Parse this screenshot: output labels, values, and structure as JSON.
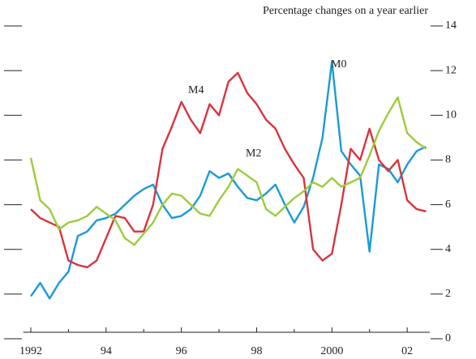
{
  "chart_data": {
    "type": "line",
    "subtitle": "Percentage changes on a year earlier",
    "x": [
      1992,
      1992.25,
      1992.5,
      1992.75,
      1993,
      1993.25,
      1993.5,
      1993.75,
      1994,
      1994.25,
      1994.5,
      1994.75,
      1995,
      1995.25,
      1995.5,
      1995.75,
      1996,
      1996.25,
      1996.5,
      1996.75,
      1997,
      1997.25,
      1997.5,
      1997.75,
      1998,
      1998.25,
      1998.5,
      1998.75,
      1999,
      1999.25,
      1999.5,
      1999.75,
      2000,
      2000.25,
      2000.5,
      2000.75,
      2001,
      2001.25,
      2001.5,
      2001.75,
      2002,
      2002.25,
      2002.5
    ],
    "series": [
      {
        "name": "M0",
        "color": "#1a9ad6",
        "values": [
          1.9,
          2.5,
          1.8,
          2.5,
          3.0,
          4.6,
          4.8,
          5.3,
          5.4,
          5.6,
          6.0,
          6.4,
          6.7,
          6.9,
          6.0,
          5.4,
          5.5,
          5.8,
          6.4,
          7.5,
          7.2,
          7.4,
          6.8,
          6.3,
          6.2,
          6.5,
          6.9,
          6.0,
          5.2,
          5.9,
          7.2,
          9.0,
          12.4,
          8.4,
          7.8,
          7.3,
          3.9,
          7.8,
          7.6,
          7.0,
          7.8,
          8.4,
          8.6
        ]
      },
      {
        "name": "M4",
        "color": "#d8343f",
        "values": [
          5.8,
          5.4,
          5.2,
          5.0,
          3.5,
          3.3,
          3.2,
          3.5,
          4.5,
          5.5,
          5.4,
          4.8,
          4.8,
          6.0,
          8.5,
          9.5,
          10.6,
          9.8,
          9.2,
          10.5,
          10.0,
          11.5,
          11.9,
          11.0,
          10.5,
          9.8,
          9.4,
          8.5,
          7.8,
          7.2,
          4.0,
          3.5,
          3.8,
          6.0,
          8.5,
          8.0,
          9.4,
          8.0,
          7.5,
          8.0,
          6.2,
          5.8,
          5.7
        ]
      },
      {
        "name": "M2",
        "color": "#9ccc3c",
        "values": [
          8.1,
          6.2,
          5.8,
          4.9,
          5.2,
          5.3,
          5.5,
          5.9,
          5.6,
          5.3,
          4.5,
          4.2,
          4.7,
          5.2,
          6.0,
          6.5,
          6.4,
          6.0,
          5.6,
          5.5,
          6.2,
          6.8,
          7.6,
          7.3,
          7.0,
          5.8,
          5.5,
          5.9,
          6.3,
          6.6,
          7.0,
          6.8,
          7.2,
          6.8,
          7.0,
          7.2,
          8.2,
          9.3,
          10.1,
          10.8,
          9.2,
          8.8,
          8.5
        ]
      }
    ],
    "xlim": [
      1991.8,
      2002.6
    ],
    "xticks": [
      {
        "value": 1992,
        "label": "1992"
      },
      {
        "value": 1994,
        "label": "94"
      },
      {
        "value": 1996,
        "label": "96"
      },
      {
        "value": 1998,
        "label": "98"
      },
      {
        "value": 2000,
        "label": "2000"
      },
      {
        "value": 2002,
        "label": "02"
      }
    ],
    "xminorticks": [
      1993,
      1995,
      1997,
      1999,
      2001
    ],
    "ylim": [
      0,
      14
    ],
    "yticks": [
      0,
      2,
      4,
      6,
      8,
      10,
      12,
      14
    ]
  }
}
